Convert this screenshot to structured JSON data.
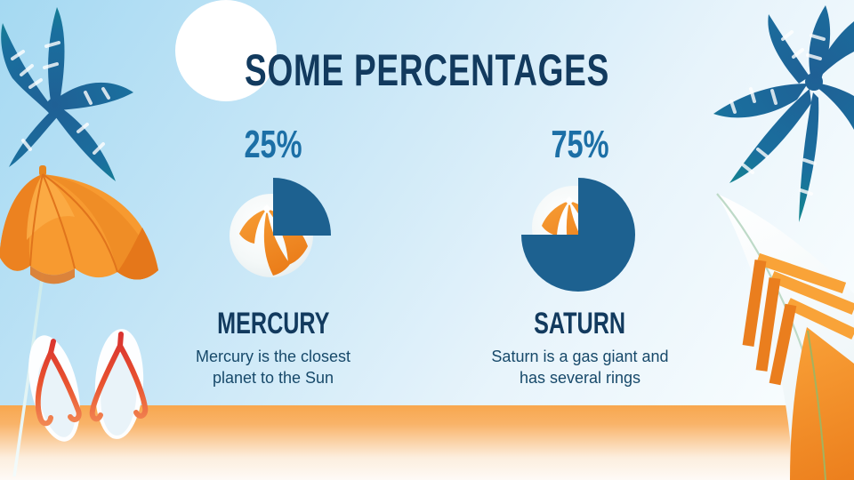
{
  "slide": {
    "title": "SOME PERCENTAGES"
  },
  "chart_data": [
    {
      "type": "pie",
      "title": "MERCURY",
      "percent": 25,
      "percent_label": "25%",
      "description": "Mercury is the closest planet to the Sun",
      "start_angle_deg": 0,
      "direction": "clockwise",
      "slices": [
        {
          "label": "Mercury share",
          "value": 25,
          "color": "#1d6190"
        },
        {
          "label": "remainder",
          "value": 75,
          "pattern": "beach-ball illustration"
        }
      ]
    },
    {
      "type": "pie",
      "title": "SATURN",
      "percent": 75,
      "percent_label": "75%",
      "description": "Saturn is a gas giant and has several rings",
      "start_angle_deg": 0,
      "direction": "clockwise",
      "slices": [
        {
          "label": "Saturn share",
          "value": 75,
          "color": "#1d6190"
        },
        {
          "label": "remainder",
          "value": 25,
          "pattern": "beach-ball illustration"
        }
      ]
    }
  ],
  "theme": {
    "title_color": "#123a5e",
    "percent_color": "#1c6fa6",
    "heading_color": "#123a5e",
    "body_color": "#17496a",
    "pie_color": "#1d6190",
    "sky_top": "#a5d9f2",
    "sky_bottom": "#f7fcfe",
    "sand_top": "#f8a74e",
    "sand_bottom": "#fdf7f1",
    "palm_blue": "#1d6298",
    "palm_teal": "#0f9386",
    "umbrella_orange": "#f79a30",
    "umbrella_dark": "#e87d1d",
    "ball_orange": "#f0882a",
    "strap_red": "#dd3933",
    "chevron_orange": "#f5952e",
    "sun_color": "#ffffff"
  },
  "decorations": [
    {
      "icon": "sun-icon"
    },
    {
      "icon": "palm-tree-left-icon"
    },
    {
      "icon": "palm-tree-right-icon"
    },
    {
      "icon": "beach-umbrella-icon"
    },
    {
      "icon": "flip-flops-icon"
    },
    {
      "icon": "surfboard-icon"
    },
    {
      "icon": "beach-ball-icon"
    }
  ]
}
